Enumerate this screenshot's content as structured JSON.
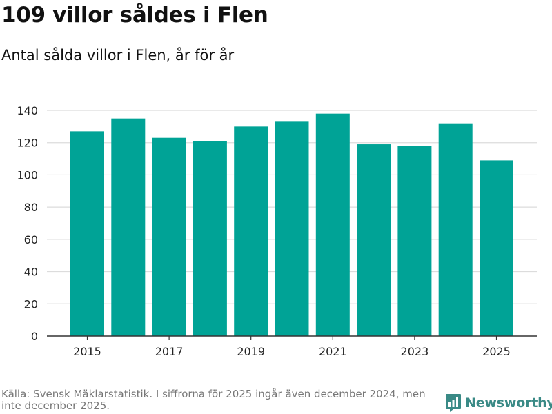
{
  "title": "109 villor såldes i Flen",
  "subtitle": "Antal sålda villor i Flen, år för år",
  "source": "Källa: Svensk Mäklarstatistik. I siffrorna för 2025 ingår även december 2024, men inte december 2025.",
  "logo": {
    "name": "Newsworthy",
    "icon": "bar-chart-speech-icon",
    "color": "#3a8a86"
  },
  "chart_data": {
    "type": "bar",
    "title": "109 villor såldes i Flen",
    "subtitle": "Antal sålda villor i Flen, år för år",
    "xlabel": "",
    "ylabel": "",
    "categories": [
      "2015",
      "2016",
      "2017",
      "2018",
      "2019",
      "2020",
      "2021",
      "2022",
      "2023",
      "2024",
      "2025"
    ],
    "values": [
      127,
      135,
      123,
      121,
      130,
      133,
      138,
      119,
      118,
      132,
      109
    ],
    "x_tick_labels": [
      "2015",
      "2017",
      "2019",
      "2021",
      "2023",
      "2025"
    ],
    "ylim": [
      0,
      140
    ],
    "yticks": [
      0,
      20,
      40,
      60,
      80,
      100,
      120,
      140
    ],
    "bar_color": "#00a396",
    "grid": true
  }
}
